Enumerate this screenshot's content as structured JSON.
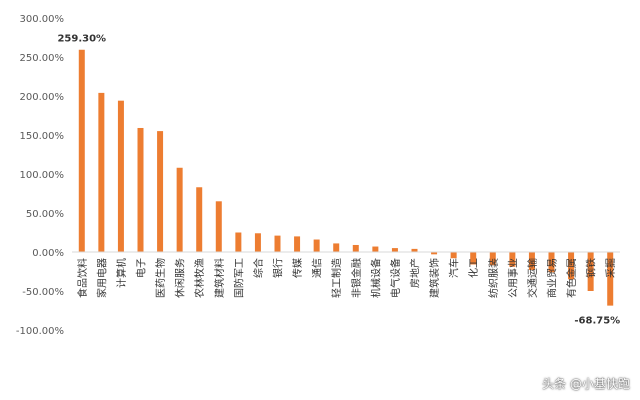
{
  "chart_data": {
    "type": "bar",
    "categories": [
      "食品饮料",
      "家用电器",
      "计算机",
      "电子",
      "医药生物",
      "休闲服务",
      "农林牧渔",
      "建筑材料",
      "国防军工",
      "综合",
      "银行",
      "传媒",
      "通信",
      "轻工制造",
      "非银金融",
      "机械设备",
      "电气设备",
      "房地产",
      "建筑装饰",
      "汽车",
      "化工",
      "纺织服装",
      "公用事业",
      "交通运输",
      "商业贸易",
      "有色金属",
      "钢铁",
      "采掘"
    ],
    "values": [
      259.3,
      204,
      194,
      159,
      155,
      108,
      83,
      65,
      25,
      24,
      21,
      20,
      16,
      11,
      9,
      7,
      5,
      4,
      -3,
      -8,
      -16,
      -17,
      -19,
      -23,
      -26,
      -35,
      -50,
      -68.75
    ],
    "y_ticks": [
      "300.00%",
      "250.00%",
      "200.00%",
      "150.00%",
      "100.00%",
      "50.00%",
      "0.00%",
      "-50.00%",
      "-100.00%"
    ],
    "ylim": [
      -100,
      300
    ],
    "data_labels": [
      {
        "category": "食品饮料",
        "text": "259.30%"
      },
      {
        "category": "采掘",
        "text": "-68.75%"
      }
    ],
    "bar_color": "#ED7D31",
    "grid": false,
    "title": "",
    "xlabel": "",
    "ylabel": ""
  },
  "watermark": "头条 @小基快跑"
}
